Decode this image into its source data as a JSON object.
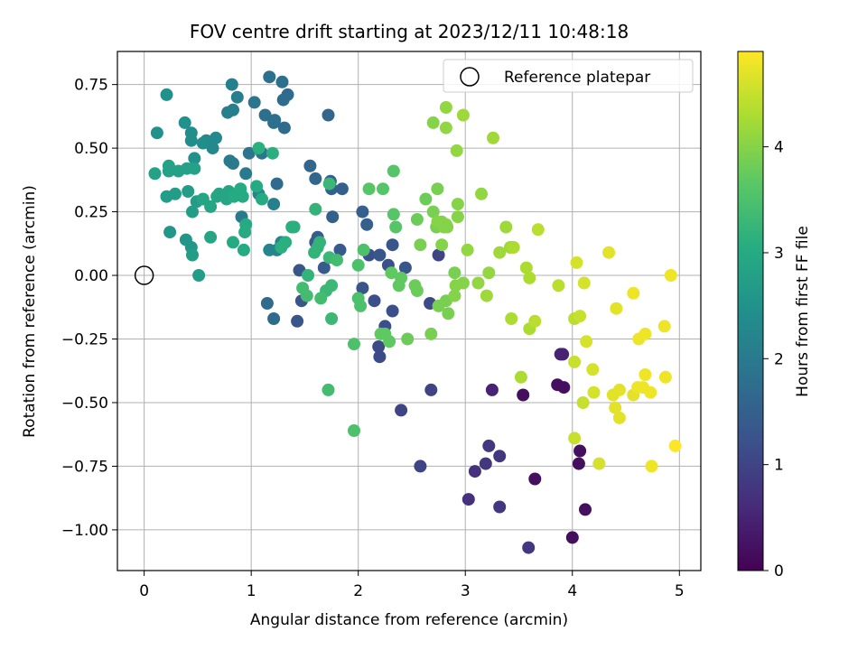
{
  "chart_data": {
    "type": "scatter",
    "title": "FOV centre drift starting at 2023/12/11 10:48:18",
    "xlabel": "Angular distance from reference (arcmin)",
    "ylabel": "Rotation from reference (arcmin)",
    "colorbar_label": "Hours from first FF file",
    "xlim": [
      -0.25,
      5.2
    ],
    "ylim": [
      -1.16,
      0.88
    ],
    "clim": [
      0,
      4.9
    ],
    "colormap": "viridis",
    "grid": true,
    "legend_placement": "top-right",
    "x_ticks": [
      {
        "v": 0,
        "label": "0"
      },
      {
        "v": 1,
        "label": "1"
      },
      {
        "v": 2,
        "label": "2"
      },
      {
        "v": 3,
        "label": "3"
      },
      {
        "v": 4,
        "label": "4"
      },
      {
        "v": 5,
        "label": "5"
      }
    ],
    "y_ticks": [
      {
        "v": 0.75,
        "label": "0.75"
      },
      {
        "v": 0.5,
        "label": "0.50"
      },
      {
        "v": 0.25,
        "label": "0.25"
      },
      {
        "v": 0,
        "label": "0.00"
      },
      {
        "v": -0.25,
        "label": "−0.25"
      },
      {
        "v": -0.5,
        "label": "−0.50"
      },
      {
        "v": -0.75,
        "label": "−0.75"
      },
      {
        "v": -1.0,
        "label": "−1.00"
      }
    ],
    "colorbar_ticks": [
      {
        "v": 0,
        "label": "0"
      },
      {
        "v": 1,
        "label": "1"
      },
      {
        "v": 2,
        "label": "2"
      },
      {
        "v": 3,
        "label": "3"
      },
      {
        "v": 4,
        "label": "4"
      }
    ],
    "legend": [
      {
        "label": "Reference platepar",
        "marker": "open-circle"
      }
    ],
    "reference_point": {
      "x": 0,
      "y": 0
    },
    "points": [
      [
        3.65,
        -0.8,
        0.2
      ],
      [
        4.07,
        -0.69,
        0.2
      ],
      [
        4.12,
        -0.92,
        0.2
      ],
      [
        4.0,
        -1.03,
        0.2
      ],
      [
        4.06,
        -0.74,
        0.2
      ],
      [
        3.54,
        -0.47,
        0.2
      ],
      [
        3.86,
        -0.43,
        0.2
      ],
      [
        3.92,
        -0.44,
        0.2
      ],
      [
        3.89,
        -0.31,
        0.5
      ],
      [
        3.91,
        -0.31,
        0.5
      ],
      [
        3.25,
        -0.45,
        0.5
      ],
      [
        3.03,
        -0.88,
        0.7
      ],
      [
        3.09,
        -0.77,
        0.7
      ],
      [
        3.19,
        -0.74,
        0.8
      ],
      [
        3.22,
        -0.67,
        0.8
      ],
      [
        3.32,
        -0.71,
        0.8
      ],
      [
        3.32,
        -0.91,
        0.8
      ],
      [
        3.59,
        -1.07,
        0.8
      ],
      [
        2.58,
        -0.75,
        1.0
      ],
      [
        2.4,
        -0.53,
        1.0
      ],
      [
        2.68,
        -0.45,
        1.0
      ],
      [
        2.75,
        0.08,
        1.0
      ],
      [
        2.67,
        -0.11,
        1.1
      ],
      [
        2.2,
        -0.32,
        1.1
      ],
      [
        2.19,
        -0.28,
        1.1
      ],
      [
        2.25,
        -0.2,
        1.2
      ],
      [
        2.32,
        -0.14,
        1.2
      ],
      [
        2.28,
        0.04,
        1.2
      ],
      [
        2.15,
        -0.1,
        1.2
      ],
      [
        2.1,
        0.08,
        1.2
      ],
      [
        2.04,
        -0.05,
        1.3
      ],
      [
        2.44,
        0.03,
        1.3
      ],
      [
        2.2,
        0.08,
        1.3
      ],
      [
        2.32,
        0.12,
        1.3
      ],
      [
        1.47,
        -0.1,
        1.3
      ],
      [
        1.45,
        0.02,
        1.3
      ],
      [
        1.43,
        -0.18,
        1.3
      ],
      [
        1.6,
        0.13,
        1.4
      ],
      [
        1.62,
        0.15,
        1.4
      ],
      [
        1.68,
        0.03,
        1.4
      ],
      [
        1.83,
        0.1,
        1.4
      ],
      [
        1.75,
        0.34,
        1.5
      ],
      [
        1.85,
        0.34,
        1.5
      ],
      [
        2.04,
        0.25,
        1.5
      ],
      [
        2.08,
        0.2,
        1.5
      ],
      [
        1.74,
        0.37,
        1.5
      ],
      [
        1.76,
        0.23,
        1.5
      ],
      [
        1.55,
        0.43,
        1.6
      ],
      [
        1.6,
        0.38,
        1.6
      ],
      [
        1.72,
        0.63,
        1.6
      ],
      [
        1.15,
        -0.11,
        1.7
      ],
      [
        1.21,
        -0.17,
        1.7
      ],
      [
        1.24,
        0.36,
        1.7
      ],
      [
        1.31,
        0.58,
        1.7
      ],
      [
        1.3,
        0.69,
        1.7
      ],
      [
        1.34,
        0.71,
        1.7
      ],
      [
        1.17,
        0.78,
        1.8
      ],
      [
        1.29,
        0.76,
        1.8
      ],
      [
        1.13,
        0.63,
        1.8
      ],
      [
        1.21,
        0.6,
        1.8
      ],
      [
        1.22,
        0.61,
        1.8
      ],
      [
        1.03,
        0.68,
        1.9
      ],
      [
        1.1,
        0.48,
        1.9
      ],
      [
        0.98,
        0.48,
        1.9
      ],
      [
        0.91,
        0.23,
        2.0
      ],
      [
        0.95,
        0.4,
        2.0
      ],
      [
        0.83,
        0.44,
        2.0
      ],
      [
        0.8,
        0.45,
        2.0
      ],
      [
        0.87,
        0.7,
        2.1
      ],
      [
        0.83,
        0.65,
        2.1
      ],
      [
        0.78,
        0.64,
        2.1
      ],
      [
        0.82,
        0.75,
        2.1
      ],
      [
        1.21,
        0.28,
        2.1
      ],
      [
        1.17,
        0.1,
        2.2
      ],
      [
        1.07,
        0.32,
        2.2
      ],
      [
        1.24,
        0.1,
        2.2
      ],
      [
        1.28,
        0.13,
        2.2
      ],
      [
        0.67,
        0.54,
        2.3
      ],
      [
        0.64,
        0.5,
        2.3
      ],
      [
        0.58,
        0.53,
        2.3
      ],
      [
        0.55,
        0.52,
        2.4
      ],
      [
        0.44,
        0.56,
        2.4
      ],
      [
        0.44,
        0.53,
        2.4
      ],
      [
        0.47,
        0.46,
        2.5
      ],
      [
        0.38,
        0.6,
        2.5
      ],
      [
        0.12,
        0.56,
        2.5
      ],
      [
        0.21,
        0.71,
        2.5
      ],
      [
        0.24,
        0.17,
        2.6
      ],
      [
        0.39,
        0.14,
        2.6
      ],
      [
        0.44,
        0.11,
        2.6
      ],
      [
        0.45,
        0.08,
        2.7
      ],
      [
        0.51,
        0.0,
        2.7
      ],
      [
        0.45,
        0.25,
        2.7
      ],
      [
        0.49,
        0.29,
        2.7
      ],
      [
        0.41,
        0.33,
        2.7
      ],
      [
        0.29,
        0.32,
        2.7
      ],
      [
        0.21,
        0.31,
        2.7
      ],
      [
        0.1,
        0.4,
        2.8
      ],
      [
        0.23,
        0.41,
        2.8
      ],
      [
        0.23,
        0.43,
        2.8
      ],
      [
        0.32,
        0.41,
        2.8
      ],
      [
        0.4,
        0.42,
        2.8
      ],
      [
        0.47,
        0.42,
        2.8
      ],
      [
        0.62,
        0.27,
        2.9
      ],
      [
        0.62,
        0.15,
        2.9
      ],
      [
        0.55,
        0.3,
        2.9
      ],
      [
        0.68,
        0.31,
        2.9
      ],
      [
        0.7,
        0.32,
        2.9
      ],
      [
        0.77,
        0.3,
        2.9
      ],
      [
        0.79,
        0.33,
        2.9
      ],
      [
        0.84,
        0.31,
        3.0
      ],
      [
        0.9,
        0.34,
        3.0
      ],
      [
        0.92,
        0.31,
        3.0
      ],
      [
        1.05,
        0.35,
        3.0
      ],
      [
        1.1,
        0.3,
        3.0
      ],
      [
        0.94,
        0.17,
        3.0
      ],
      [
        0.95,
        0.2,
        3.0
      ],
      [
        0.83,
        0.13,
        3.0
      ],
      [
        0.93,
        0.1,
        3.0
      ],
      [
        1.28,
        0.11,
        3.1
      ],
      [
        1.32,
        0.13,
        3.1
      ],
      [
        1.38,
        0.19,
        3.1
      ],
      [
        1.4,
        0.19,
        3.1
      ],
      [
        1.2,
        0.48,
        3.1
      ],
      [
        1.07,
        0.5,
        3.1
      ],
      [
        1.53,
        0.0,
        3.2
      ],
      [
        1.59,
        0.09,
        3.2
      ],
      [
        1.64,
        0.13,
        3.2
      ],
      [
        1.62,
        0.11,
        3.2
      ],
      [
        1.6,
        0.26,
        3.2
      ],
      [
        1.73,
        0.36,
        3.3
      ],
      [
        1.73,
        0.07,
        3.3
      ],
      [
        1.75,
        -0.04,
        3.3
      ],
      [
        1.7,
        -0.06,
        3.3
      ],
      [
        1.75,
        -0.17,
        3.3
      ],
      [
        1.8,
        0.06,
        3.4
      ],
      [
        1.65,
        -0.09,
        3.4
      ],
      [
        1.52,
        -0.08,
        3.4
      ],
      [
        1.48,
        -0.05,
        3.4
      ],
      [
        1.72,
        -0.45,
        3.4
      ],
      [
        1.96,
        -0.61,
        3.5
      ],
      [
        1.96,
        -0.27,
        3.5
      ],
      [
        2.0,
        -0.09,
        3.5
      ],
      [
        2.02,
        -0.12,
        3.5
      ],
      [
        2.0,
        0.04,
        3.5
      ],
      [
        2.05,
        0.1,
        3.5
      ],
      [
        2.1,
        0.34,
        3.6
      ],
      [
        2.23,
        0.34,
        3.6
      ],
      [
        2.33,
        0.41,
        3.6
      ],
      [
        2.33,
        0.24,
        3.6
      ],
      [
        2.35,
        0.19,
        3.6
      ],
      [
        2.25,
        -0.23,
        3.7
      ],
      [
        2.21,
        -0.23,
        3.7
      ],
      [
        2.29,
        -0.26,
        3.7
      ],
      [
        2.31,
        0.01,
        3.7
      ],
      [
        2.38,
        -0.04,
        3.7
      ],
      [
        2.4,
        -0.01,
        3.7
      ],
      [
        2.46,
        -0.25,
        3.8
      ],
      [
        2.53,
        -0.04,
        3.8
      ],
      [
        2.55,
        -0.06,
        3.8
      ],
      [
        2.55,
        0.22,
        3.8
      ],
      [
        2.63,
        0.3,
        3.8
      ],
      [
        2.58,
        0.12,
        3.9
      ],
      [
        2.7,
        0.25,
        3.9
      ],
      [
        2.73,
        0.19,
        3.9
      ],
      [
        2.74,
        0.34,
        3.9
      ],
      [
        2.68,
        -0.23,
        3.9
      ],
      [
        2.75,
        -0.12,
        3.9
      ],
      [
        2.82,
        -0.1,
        3.9
      ],
      [
        2.84,
        -0.15,
        3.9
      ],
      [
        2.9,
        0.01,
        3.9
      ],
      [
        2.91,
        -0.04,
        4.0
      ],
      [
        2.9,
        -0.08,
        4.0
      ],
      [
        2.98,
        -0.03,
        4.0
      ],
      [
        2.93,
        0.23,
        4.0
      ],
      [
        2.93,
        0.28,
        4.0
      ],
      [
        2.78,
        0.12,
        4.0
      ],
      [
        2.8,
        0.19,
        4.0
      ],
      [
        2.82,
        0.2,
        4.0
      ],
      [
        2.83,
        0.19,
        4.0
      ],
      [
        2.74,
        0.21,
        4.0
      ],
      [
        2.78,
        0.21,
        4.0
      ],
      [
        2.7,
        0.6,
        4.0
      ],
      [
        2.82,
        0.58,
        4.1
      ],
      [
        2.82,
        0.66,
        4.1
      ],
      [
        2.92,
        0.49,
        4.1
      ],
      [
        3.02,
        0.1,
        4.1
      ],
      [
        3.12,
        -0.03,
        4.1
      ],
      [
        3.15,
        0.32,
        4.1
      ],
      [
        3.22,
        0.01,
        4.1
      ],
      [
        3.2,
        -0.08,
        4.2
      ],
      [
        3.26,
        0.54,
        4.2
      ],
      [
        2.98,
        0.63,
        4.2
      ],
      [
        3.32,
        0.09,
        4.2
      ],
      [
        3.38,
        0.19,
        4.2
      ],
      [
        3.42,
        0.11,
        4.2
      ],
      [
        3.45,
        0.11,
        4.3
      ],
      [
        3.43,
        -0.17,
        4.3
      ],
      [
        3.52,
        -0.4,
        4.3
      ],
      [
        3.57,
        0.03,
        4.3
      ],
      [
        3.6,
        -0.01,
        4.3
      ],
      [
        3.6,
        -0.21,
        4.3
      ],
      [
        3.65,
        -0.18,
        4.4
      ],
      [
        3.68,
        0.18,
        4.4
      ],
      [
        3.87,
        -0.04,
        4.4
      ],
      [
        4.02,
        -0.17,
        4.4
      ],
      [
        4.07,
        -0.16,
        4.5
      ],
      [
        4.02,
        -0.34,
        4.5
      ],
      [
        4.1,
        -0.5,
        4.5
      ],
      [
        4.02,
        -0.64,
        4.5
      ],
      [
        4.13,
        -0.26,
        4.6
      ],
      [
        4.11,
        -0.03,
        4.6
      ],
      [
        4.2,
        -0.46,
        4.6
      ],
      [
        4.19,
        -0.37,
        4.6
      ],
      [
        4.04,
        0.05,
        4.6
      ],
      [
        4.25,
        -0.74,
        4.6
      ],
      [
        4.34,
        0.09,
        4.7
      ],
      [
        4.38,
        -0.47,
        4.7
      ],
      [
        4.4,
        -0.52,
        4.7
      ],
      [
        4.44,
        -0.56,
        4.7
      ],
      [
        4.44,
        -0.45,
        4.7
      ],
      [
        4.41,
        -0.13,
        4.7
      ],
      [
        4.57,
        -0.47,
        4.7
      ],
      [
        4.57,
        -0.07,
        4.8
      ],
      [
        4.61,
        -0.44,
        4.8
      ],
      [
        4.62,
        -0.25,
        4.8
      ],
      [
        4.66,
        -0.44,
        4.8
      ],
      [
        4.68,
        -0.23,
        4.8
      ],
      [
        4.68,
        -0.39,
        4.8
      ],
      [
        4.73,
        -0.46,
        4.8
      ],
      [
        4.74,
        -0.75,
        4.8
      ],
      [
        4.86,
        -0.2,
        4.8
      ],
      [
        4.87,
        -0.4,
        4.8
      ],
      [
        4.92,
        0.0,
        4.8
      ],
      [
        4.96,
        -0.67,
        4.9
      ]
    ]
  }
}
